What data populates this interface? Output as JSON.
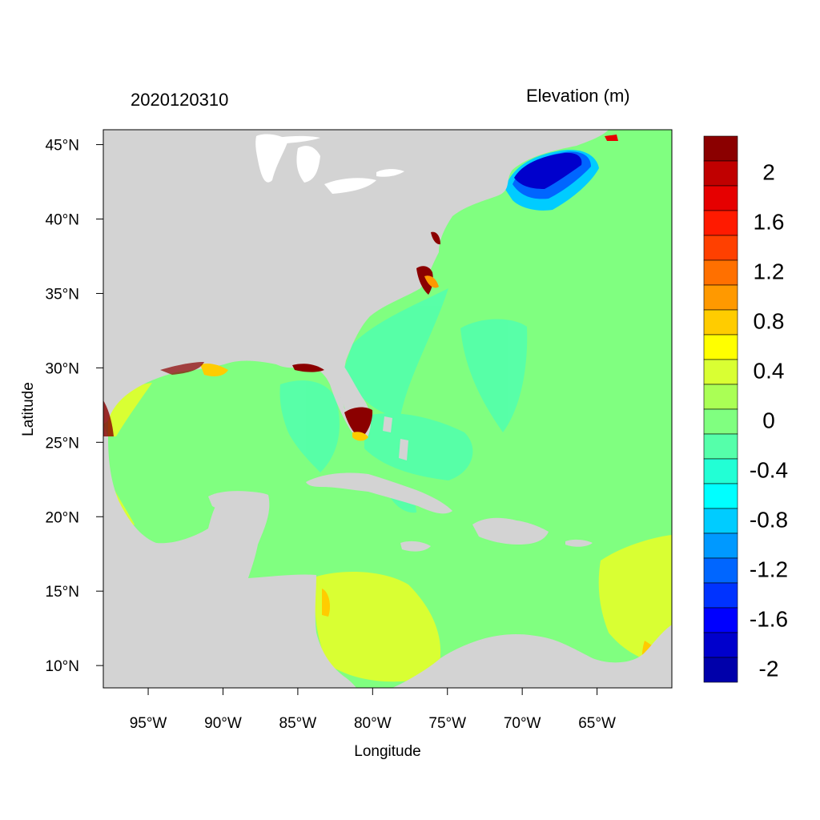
{
  "map": {
    "title_left": "2020120310",
    "title_right": "Elevation (m)",
    "x_axis_label": "Longitude",
    "y_axis_label": "Latitude",
    "lon_ticks": [
      "95°W",
      "90°W",
      "85°W",
      "80°W",
      "75°W",
      "70°W",
      "65°W"
    ],
    "lat_ticks": [
      "45°N",
      "40°N",
      "35°N",
      "30°N",
      "25°N",
      "20°N",
      "15°N",
      "10°N"
    ],
    "lon_range": [
      -98,
      -60
    ],
    "lat_range": [
      8.5,
      46
    ],
    "colors": {
      "land": "#d3d3d3",
      "ocean_near_zero": "#80ff80"
    }
  },
  "colorbar": {
    "labels": [
      "2",
      "1.6",
      "1.2",
      "0.8",
      "0.4",
      "0",
      "-0.4",
      "-0.8",
      "-1.2",
      "-1.6",
      "-2"
    ],
    "colors": [
      "#8b0000",
      "#c00000",
      "#e60000",
      "#ff1a00",
      "#ff4000",
      "#ff7000",
      "#ff9900",
      "#ffcc00",
      "#ffff00",
      "#d9ff33",
      "#aaff55",
      "#80ff80",
      "#55ffaa",
      "#22ffd5",
      "#00ffff",
      "#00ccff",
      "#0099ff",
      "#0066ff",
      "#0033ff",
      "#0000ff",
      "#0000cc",
      "#0000aa"
    ]
  }
}
